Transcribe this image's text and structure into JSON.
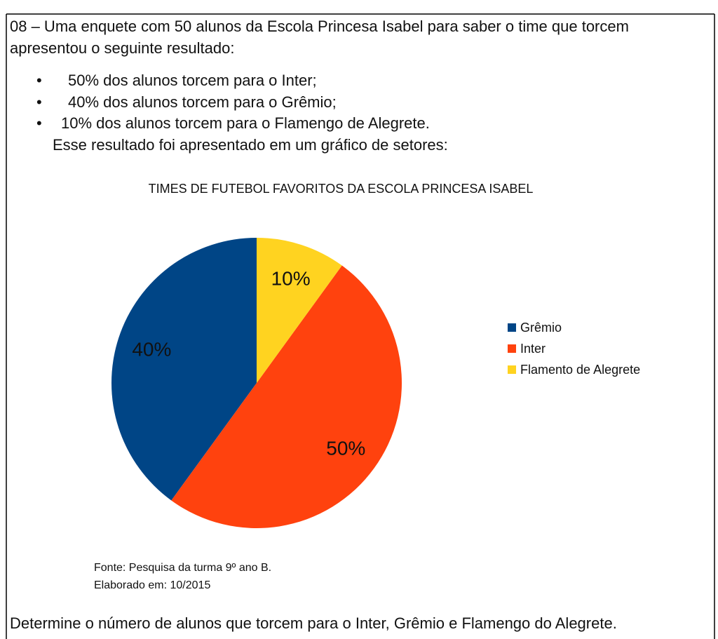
{
  "intro_lines": [
    "08 – Uma enquete com 50 alunos da Escola Princesa Isabel para saber o time que torcem",
    "apresentou o seguinte resultado:"
  ],
  "bullets": [
    "50% dos alunos torcem para o Inter;",
    "40% dos alunos torcem para o Grêmio;",
    "10% dos alunos torcem para o Flamengo de Alegrete."
  ],
  "lead": "Esse resultado foi apresentado em um gráfico de setores:",
  "chart_data": {
    "type": "pie",
    "title": "TIMES DE FUTEBOL FAVORITOS DA ESCOLA PRINCESA ISABEL",
    "categories": [
      "Grêmio",
      "Inter",
      "Flamento de Alegrete"
    ],
    "values": [
      40,
      50,
      10
    ],
    "value_labels": [
      "40%",
      "50%",
      "10%"
    ],
    "colors": [
      "#004586",
      "#ff420e",
      "#ffd320"
    ]
  },
  "source": [
    "Fonte: Pesquisa da turma 9º ano B.",
    "Elaborado em: 10/2015"
  ],
  "prompt": "Determine o número de alunos que torcem para o Inter, Grêmio e Flamengo do Alegrete."
}
